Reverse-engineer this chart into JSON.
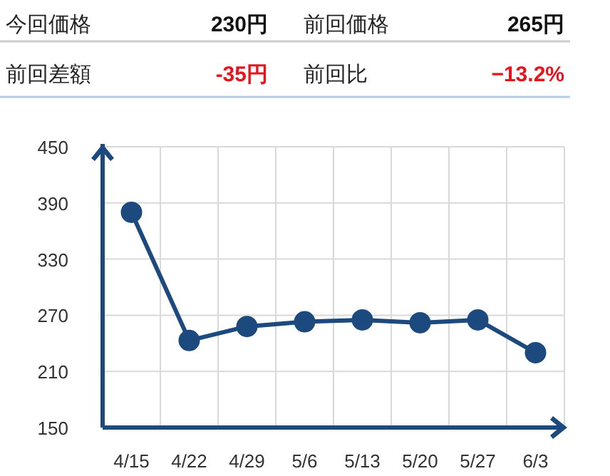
{
  "chart_data": [
    {
      "type": "other",
      "annotations": [
        "今回価格",
        "230円",
        "前回価格",
        "265円",
        "前回差額",
        "-35円",
        "前回比",
        "−13.2%"
      ]
    },
    {
      "type": "line",
      "categories": [
        "4/15",
        "4/22",
        "4/29",
        "5/6",
        "5/13",
        "5/20",
        "5/27",
        "6/3"
      ],
      "series": [
        {
          "color": "#1d4a7e",
          "values": [
            380,
            243,
            258,
            263,
            265,
            262,
            265,
            230
          ]
        }
      ],
      "ylim": [
        150,
        450
      ],
      "yticks": [
        150,
        210,
        270,
        330,
        390,
        450
      ],
      "grid": true,
      "marker": "circle",
      "line_style": "solid"
    }
  ]
}
